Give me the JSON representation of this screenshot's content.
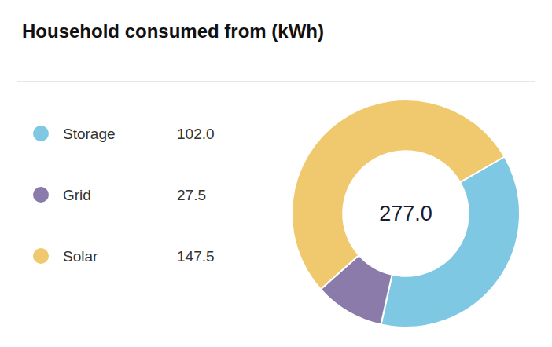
{
  "chart_data": {
    "type": "donut",
    "title": "Household consumed from (kWh)",
    "categories": [
      "Storage",
      "Grid",
      "Solar"
    ],
    "values": [
      102.0,
      27.5,
      147.5
    ],
    "value_labels": [
      "102.0",
      "27.5",
      "147.5"
    ],
    "colors": [
      "#7EC8E3",
      "#8B7BAB",
      "#F0C96E"
    ],
    "legend": "left",
    "annotations": [
      {
        "text": "277.0"
      }
    ]
  }
}
